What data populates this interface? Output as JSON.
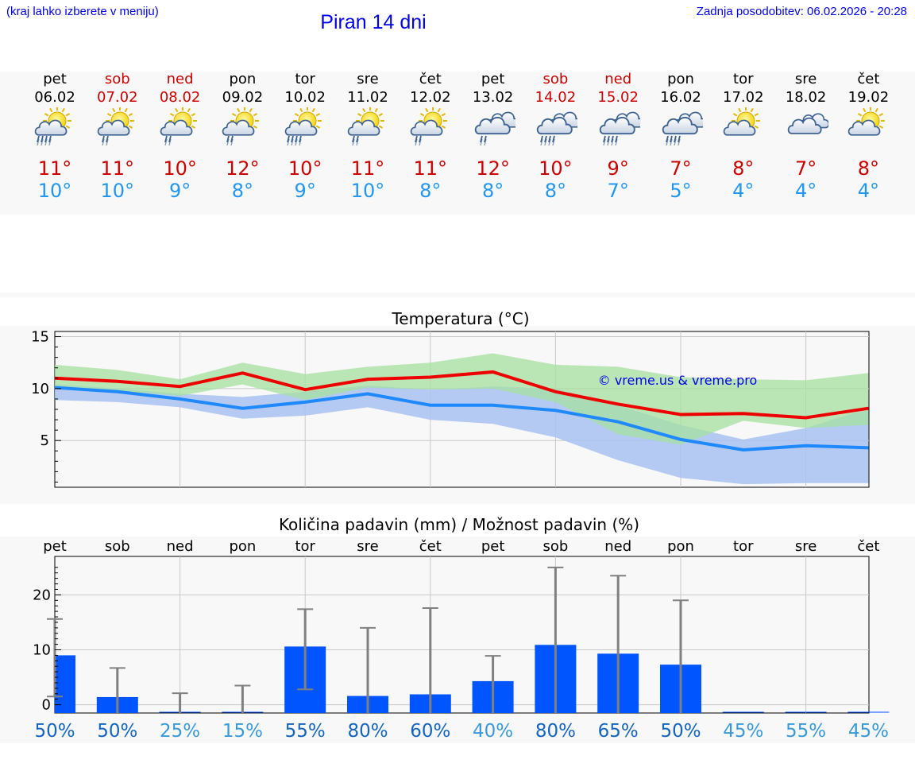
{
  "header": {
    "hint": "(kraj lahko izberete v meniju)",
    "title": "Piran 14 dni",
    "updated": "Zadnja posodobitev: 06.02.2026 - 20:28"
  },
  "colors": {
    "weekday": "#000000",
    "weekend": "#cc0000",
    "temp_max": "#cc0000",
    "temp_min": "#2196f3",
    "max_line": "#ee0000",
    "min_line": "#1e88ff",
    "max_band": "#a5e0a0",
    "min_band": "#a8c2f2",
    "overlap_band": "#7cbfa4",
    "precip_bar": "#0055ff",
    "errbar": "#808080",
    "pct_dark": "#1565c0",
    "pct_light": "#3a9ad9",
    "watermark": "#0000ee"
  },
  "forecast": [
    {
      "dow": "pet",
      "date": "06.02",
      "weekend": false,
      "icon": "sun-cloud-rain-icon",
      "tmax": "11°",
      "tmin": "10°"
    },
    {
      "dow": "sob",
      "date": "07.02",
      "weekend": true,
      "icon": "sun-cloud-drizzle-icon",
      "tmax": "11°",
      "tmin": "10°"
    },
    {
      "dow": "ned",
      "date": "08.02",
      "weekend": true,
      "icon": "sun-cloud-drizzle-icon",
      "tmax": "10°",
      "tmin": "9°"
    },
    {
      "dow": "pon",
      "date": "09.02",
      "weekend": false,
      "icon": "sun-cloud-drizzle-icon",
      "tmax": "12°",
      "tmin": "8°"
    },
    {
      "dow": "tor",
      "date": "10.02",
      "weekend": false,
      "icon": "sun-cloud-rain-icon",
      "tmax": "10°",
      "tmin": "9°"
    },
    {
      "dow": "sre",
      "date": "11.02",
      "weekend": false,
      "icon": "sun-cloud-drizzle-icon",
      "tmax": "11°",
      "tmin": "10°"
    },
    {
      "dow": "čet",
      "date": "12.02",
      "weekend": false,
      "icon": "sun-cloud-drizzle-icon",
      "tmax": "11°",
      "tmin": "8°"
    },
    {
      "dow": "pet",
      "date": "13.02",
      "weekend": false,
      "icon": "cloud-drizzle-icon",
      "tmax": "12°",
      "tmin": "8°"
    },
    {
      "dow": "sob",
      "date": "14.02",
      "weekend": true,
      "icon": "cloud-rain-icon",
      "tmax": "10°",
      "tmin": "8°"
    },
    {
      "dow": "ned",
      "date": "15.02",
      "weekend": true,
      "icon": "cloud-rain-icon",
      "tmax": "9°",
      "tmin": "7°"
    },
    {
      "dow": "pon",
      "date": "16.02",
      "weekend": false,
      "icon": "cloud-rain-icon",
      "tmax": "7°",
      "tmin": "5°"
    },
    {
      "dow": "tor",
      "date": "17.02",
      "weekend": false,
      "icon": "sun-cloud-icon",
      "tmax": "8°",
      "tmin": "4°"
    },
    {
      "dow": "sre",
      "date": "18.02",
      "weekend": false,
      "icon": "cloud-icon",
      "tmax": "7°",
      "tmin": "4°"
    },
    {
      "dow": "čet",
      "date": "19.02",
      "weekend": false,
      "icon": "sun-cloud-icon",
      "tmax": "8°",
      "tmin": "4°"
    }
  ],
  "chart_data": [
    {
      "type": "line",
      "title": "Temperatura (°C)",
      "xlabel": "",
      "ylabel": "",
      "ylim": [
        0.5,
        15.5
      ],
      "yticks": [
        5,
        10,
        15
      ],
      "categories": [
        "06.02",
        "07.02",
        "08.02",
        "09.02",
        "10.02",
        "11.02",
        "12.02",
        "13.02",
        "14.02",
        "15.02",
        "16.02",
        "17.02",
        "18.02",
        "19.02"
      ],
      "series": [
        {
          "name": "max",
          "values": [
            11.0,
            10.7,
            10.2,
            11.5,
            9.9,
            10.9,
            11.1,
            11.6,
            9.7,
            8.5,
            7.5,
            7.6,
            7.2,
            8.1
          ]
        },
        {
          "name": "max_range_high",
          "values": [
            12.3,
            11.8,
            10.9,
            12.5,
            11.4,
            12.1,
            12.5,
            13.4,
            12.3,
            12.1,
            11.1,
            10.9,
            10.8,
            11.5
          ]
        },
        {
          "name": "max_range_low",
          "values": [
            10.2,
            9.8,
            9.3,
            10.4,
            8.9,
            10.1,
            9.9,
            10.0,
            8.7,
            5.6,
            4.6,
            6.9,
            6.2,
            6.5
          ]
        },
        {
          "name": "min",
          "values": [
            10.1,
            9.7,
            9.0,
            8.1,
            8.7,
            9.5,
            8.4,
            8.4,
            7.9,
            6.8,
            5.1,
            4.1,
            4.5,
            4.3
          ]
        },
        {
          "name": "min_range_high",
          "values": [
            10.4,
            10.0,
            9.5,
            9.2,
            9.7,
            10.3,
            9.9,
            10.2,
            10.0,
            8.4,
            6.5,
            5.1,
            6.2,
            8.1
          ]
        },
        {
          "name": "min_range_low",
          "values": [
            8.9,
            8.7,
            8.2,
            7.1,
            7.4,
            8.2,
            7.0,
            6.6,
            5.3,
            3.1,
            1.4,
            0.8,
            0.9,
            0.9
          ]
        }
      ],
      "watermark": "© vreme.us & vreme.pro"
    },
    {
      "type": "bar",
      "title": "Količina padavin (mm) / Možnost padavin (%)",
      "xlabel": "",
      "ylabel": "",
      "ylim": [
        -1.5,
        27
      ],
      "yticks": [
        0,
        10,
        20
      ],
      "categories": [
        "pet",
        "sob",
        "ned",
        "pon",
        "tor",
        "sre",
        "čet",
        "pet",
        "sob",
        "ned",
        "pon",
        "tor",
        "sre",
        "čet"
      ],
      "values": [
        9.0,
        1.4,
        0.0,
        0.0,
        10.6,
        1.6,
        1.9,
        4.3,
        10.9,
        9.3,
        7.3,
        0.0,
        0.0,
        0.0
      ],
      "error_low": [
        1.5,
        0.0,
        0.0,
        0.0,
        2.8,
        0.0,
        0.0,
        0.0,
        0.0,
        0.0,
        0.0,
        0.0,
        0.0,
        0.0
      ],
      "error_high": [
        15.6,
        6.7,
        2.1,
        3.5,
        17.4,
        14.0,
        17.6,
        8.9,
        25.0,
        23.5,
        19.0,
        0.0,
        0.0,
        0.0
      ],
      "probability": [
        "50%",
        "50%",
        "25%",
        "15%",
        "55%",
        "80%",
        "60%",
        "40%",
        "80%",
        "65%",
        "50%",
        "45%",
        "55%",
        "45%"
      ],
      "probability_dark": [
        true,
        true,
        false,
        false,
        true,
        true,
        true,
        false,
        true,
        true,
        true,
        false,
        false,
        false
      ]
    }
  ]
}
